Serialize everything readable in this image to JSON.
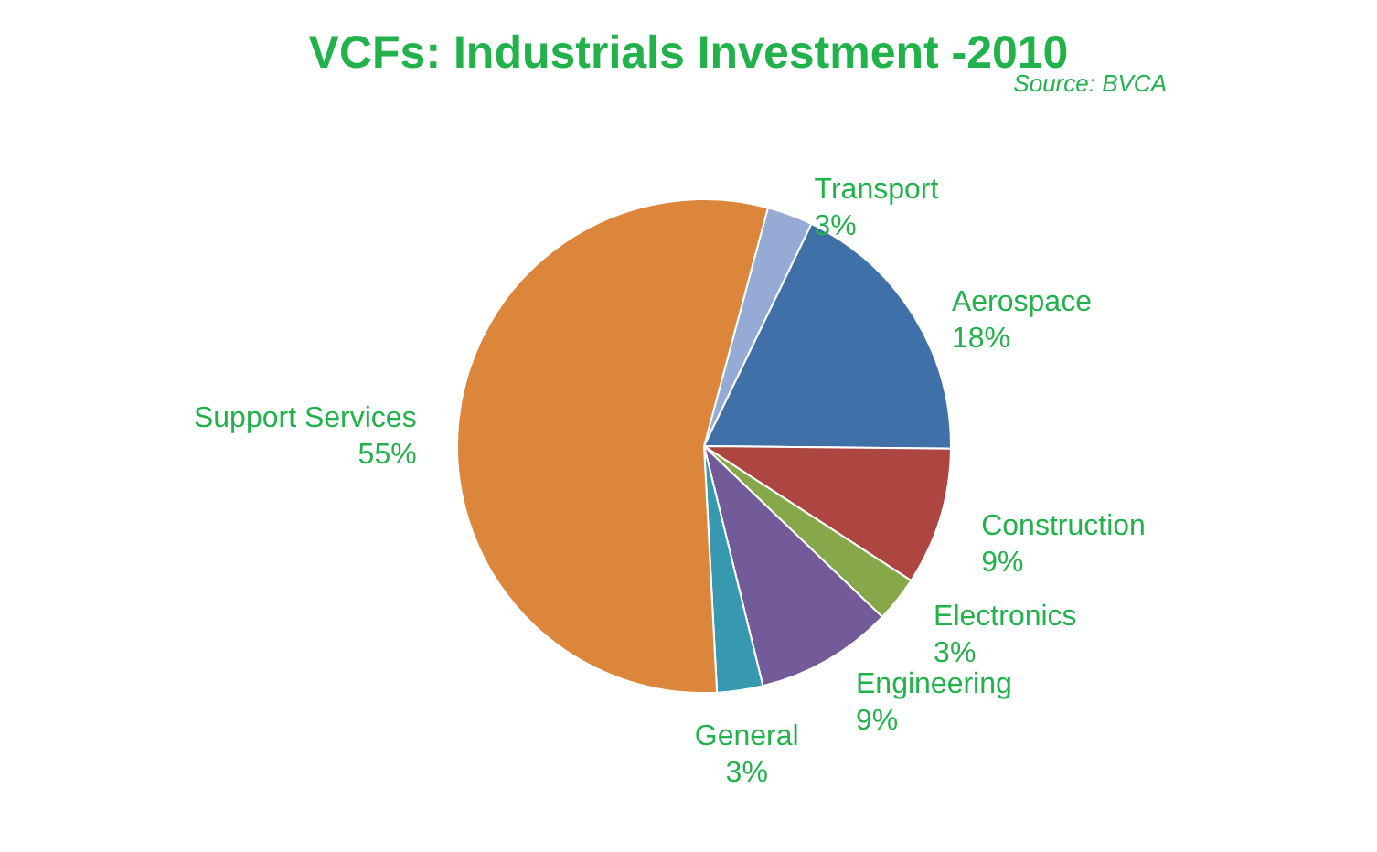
{
  "chart_data": {
    "type": "pie",
    "title": "VCFs: Industrials Investment -2010",
    "annotations": [
      "Source: BVCA"
    ],
    "categories": [
      "Transport",
      "Aerospace",
      "Construction",
      "Electronics",
      "Engineering",
      "General",
      "Support Services"
    ],
    "values": [
      3,
      18,
      9,
      3,
      9,
      3,
      55
    ],
    "value_labels": [
      "3%",
      "18%",
      "9%",
      "3%",
      "9%",
      "3%",
      "55%"
    ],
    "colors": [
      "#95abd5",
      "#4070a8",
      "#ad4540",
      "#87a84a",
      "#735a98",
      "#3798b0",
      "#dc863c"
    ]
  }
}
